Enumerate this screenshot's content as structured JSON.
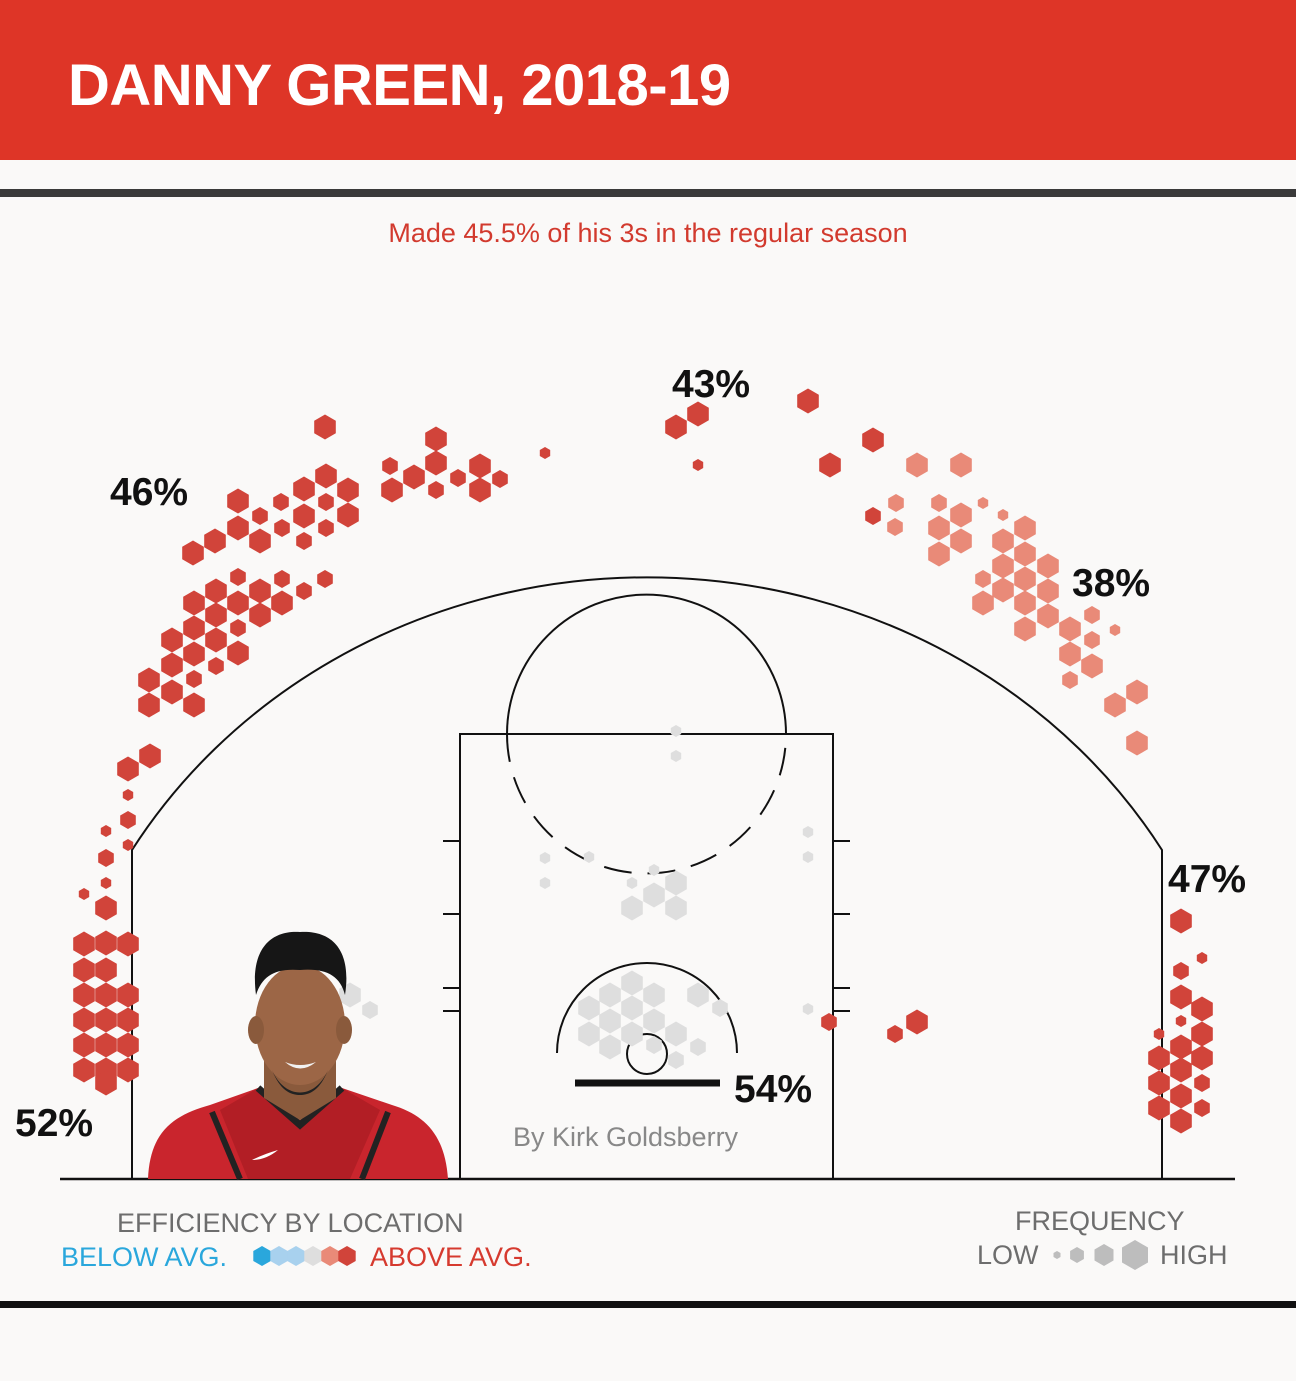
{
  "title": "DANNY GREEN, 2018-19",
  "subtitle": "Made 45.5% of his 3s in the regular season",
  "byline": "By Kirk Goldsberry",
  "colors": {
    "header": "#de3527",
    "above_strong": "#d1443a",
    "above_mild": "#e98a78",
    "average": "#dedede",
    "below_mild": "#a8d1ee",
    "below_strong": "#2aa7dc"
  },
  "photo": {
    "icon": "player-headshot",
    "description_icon": "nike-swoosh-icon"
  },
  "legend": {
    "efficiency_title": "EFFICIENCY BY LOCATION",
    "below_label": "BELOW AVG.",
    "above_label": "ABOVE AVG.",
    "frequency_title": "FREQUENCY",
    "low_label": "LOW",
    "high_label": "HIGH"
  },
  "chart_data": {
    "type": "heatmap",
    "zones": [
      {
        "zone": "left corner 3",
        "fg_pct": "52%"
      },
      {
        "zone": "left wing 3",
        "fg_pct": "46%"
      },
      {
        "zone": "top of key 3",
        "fg_pct": "43%"
      },
      {
        "zone": "right wing 3",
        "fg_pct": "38%"
      },
      {
        "zone": "right corner 3",
        "fg_pct": "47%"
      },
      {
        "zone": "restricted area",
        "fg_pct": "54%"
      }
    ]
  }
}
